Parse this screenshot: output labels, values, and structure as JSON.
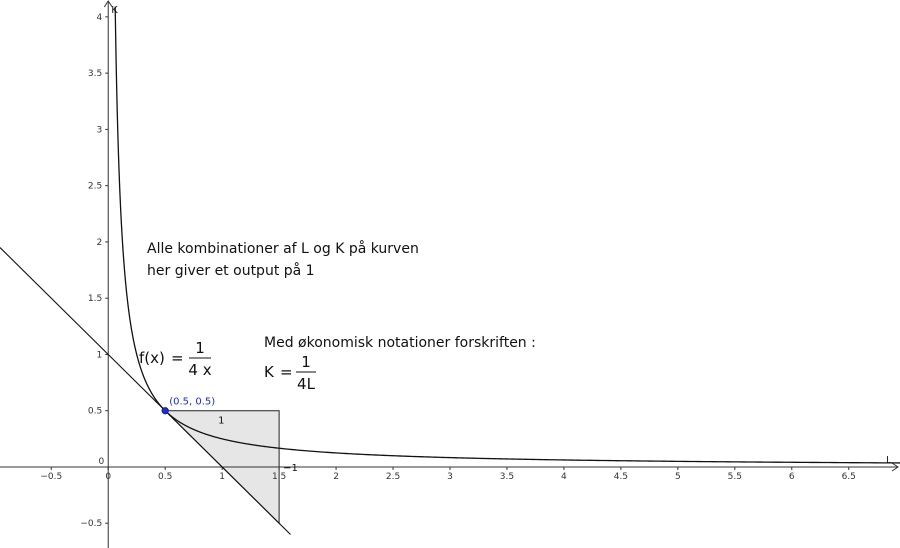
{
  "chart_data": {
    "type": "line",
    "x_axis_label": "L",
    "y_axis_label": "K",
    "xlim": [
      -0.95,
      6.95
    ],
    "ylim": [
      -0.72,
      4.15
    ],
    "x_ticks": [
      -0.5,
      0,
      0.5,
      1,
      1.5,
      2,
      2.5,
      3,
      3.5,
      4,
      4.5,
      5,
      5.5,
      6,
      6.5
    ],
    "x_tick_labels": [
      "−0.5",
      "0",
      "0.5",
      "1",
      "1.5",
      "2",
      "2.5",
      "3",
      "3.5",
      "4",
      "4.5",
      "5",
      "5.5",
      "6",
      "6.5"
    ],
    "y_ticks": [
      -0.5,
      0.5,
      1,
      1.5,
      2,
      2.5,
      3,
      3.5,
      4
    ],
    "y_tick_labels": [
      "−0.5",
      "0.5",
      "1",
      "1.5",
      "2",
      "2.5",
      "3",
      "3.5",
      "4"
    ],
    "origin_label": "0",
    "curve": {
      "function": "1/(4x)",
      "x_min": 0.0611,
      "x_max": 6.95
    },
    "tangent_line": {
      "slope": -1,
      "intercept": 1,
      "x_min": -0.95,
      "x_max": 1.6
    },
    "point": {
      "x": 0.5,
      "y": 0.5,
      "label": "(0.5, 0.5)",
      "color": "#1a2fd1"
    },
    "slope_triangle": {
      "vertices": [
        [
          0.5,
          0.5
        ],
        [
          1.5,
          0.5
        ],
        [
          1.5,
          -0.5
        ]
      ],
      "run_label": "1",
      "rise_label": "−1",
      "fill": "#e6e6e6"
    },
    "annotations": {
      "text1_line1": "Alle kombinationer af L og K på kurven",
      "text1_line2": "her giver et output på 1",
      "func_prefix": "f(x)",
      "func_eq": "=",
      "func_num": "1",
      "func_den": "4 x",
      "text2": "Med økonomisk notationer forskriften :",
      "k_prefix": "K",
      "k_eq": "=",
      "k_num": "1",
      "k_den": "4L"
    }
  }
}
